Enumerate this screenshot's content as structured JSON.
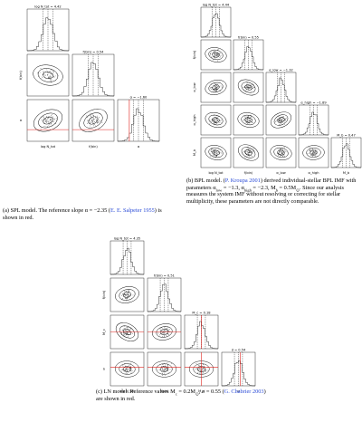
{
  "figures": [
    {
      "panel_titles": [
        "log N_tot = 4.42",
        "f(bin) = 0.54",
        "α = −1.60"
      ],
      "axis_labels": [
        "log N_tot",
        "f(bin)",
        "α"
      ],
      "caption": [
        {
          "t": "(a) SPL model. The reference slope α = −2.35 (",
          "s": "n"
        },
        {
          "t": "E. E. Salpeter 1955",
          "s": "link"
        },
        {
          "t": ") is shown in red.",
          "s": "n"
        }
      ]
    },
    {
      "panel_titles": [
        "log N_tot = 4.44",
        "f(bin) = 0.55",
        "α_low = −1.32",
        "α_high = −1.89",
        "M_b = 0.47"
      ],
      "axis_labels": [
        "log N_tot",
        "f(bin)",
        "α_low",
        "α_high",
        "M_b"
      ],
      "caption": [
        {
          "t": "(b) BPL model. (",
          "s": "n"
        },
        {
          "t": "P. Kroupa 2001",
          "s": "link"
        },
        {
          "t": ") derived individual-stellar BPL IMF with parameters α",
          "s": "n"
        },
        {
          "t": "low",
          "s": "sub"
        },
        {
          "t": " = −1.3, α",
          "s": "n"
        },
        {
          "t": "high",
          "s": "sub"
        },
        {
          "t": " = −2.3, M",
          "s": "n"
        },
        {
          "t": "b",
          "s": "sub"
        },
        {
          "t": " = 0.5M",
          "s": "n"
        },
        {
          "t": "⊙",
          "s": "sub"
        },
        {
          "t": ". Since our analysis measures the system IMF without resolving or correcting for stellar multiplicity, these parameters are not directly comparable.",
          "s": "n"
        }
      ]
    },
    {
      "panel_titles": [
        "log N_tot = 4.35",
        "f(bin) = 0.51",
        "M_c = 0.18",
        "σ = 0.54"
      ],
      "axis_labels": [
        "log N_tot",
        "f(bin)",
        "M_c",
        "σ"
      ],
      "caption": [
        {
          "t": "(c) LN model. Reference values M",
          "s": "n"
        },
        {
          "t": "c",
          "s": "sub"
        },
        {
          "t": " = 0.2M",
          "s": "n"
        },
        {
          "t": "⊙",
          "s": "sub"
        },
        {
          "t": ", σ = 0.55 (",
          "s": "n"
        },
        {
          "t": "G. Chabrier 2003",
          "s": "link"
        },
        {
          "t": ") are shown in red.",
          "s": "n"
        }
      ]
    }
  ]
}
